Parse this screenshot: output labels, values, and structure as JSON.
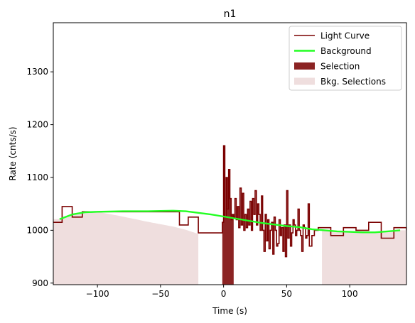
{
  "chart_data": {
    "type": "line",
    "title": "n1",
    "xlabel": "Time (s)",
    "ylabel": "Rate (cnts/s)",
    "xlim": [
      -135,
      145
    ],
    "ylim": [
      897,
      1393
    ],
    "xticks": [
      -100,
      -50,
      0,
      50,
      100
    ],
    "yticks": [
      900,
      1000,
      1100,
      1200,
      1300
    ],
    "grid": false,
    "legend_position": "top-right",
    "colors": {
      "light_curve": "#7a0000",
      "background": "#22ff22",
      "selection": "#8b2323",
      "bkg_selection": "#efdede"
    },
    "series": [
      {
        "name": "Light Curve",
        "style": "step",
        "x": [
          -135,
          -128,
          -120,
          -112,
          -104,
          -95,
          -85,
          -75,
          -65,
          -55,
          -45,
          -35,
          -28,
          -20,
          -12,
          -1,
          0,
          1,
          2,
          3,
          4,
          5,
          6,
          7,
          8,
          9,
          10,
          11,
          12,
          13,
          14,
          15,
          16,
          17,
          18,
          19,
          20,
          21,
          22,
          23,
          24,
          25,
          26,
          27,
          28,
          29,
          30,
          31,
          32,
          33,
          34,
          35,
          36,
          37,
          38,
          39,
          40,
          41,
          42,
          43,
          44,
          45,
          46,
          47,
          48,
          49,
          50,
          51,
          52,
          53,
          54,
          55,
          56,
          57,
          58,
          59,
          60,
          61,
          62,
          63,
          64,
          65,
          66,
          67,
          68,
          70,
          72,
          75,
          78,
          85,
          95,
          105,
          115,
          125,
          135,
          145
        ],
        "y": [
          1015,
          1045,
          1025,
          1035,
          1035,
          1035,
          1035,
          1035,
          1035,
          1035,
          1035,
          1010,
          1025,
          995,
          995,
          1015,
          1160,
          1025,
          1100,
          1040,
          1115,
          1060,
          1020,
          1030,
          1025,
          1060,
          1020,
          1045,
          1005,
          1080,
          1010,
          1070,
          1000,
          1030,
          1005,
          1040,
          1010,
          1055,
          1000,
          1060,
          1030,
          1075,
          1010,
          1050,
          1030,
          1000,
          1065,
          1000,
          960,
          1030,
          980,
          1020,
          965,
          1000,
          1015,
          955,
          1025,
          1000,
          970,
          975,
          1020,
          990,
          1005,
          960,
          1010,
          950,
          1075,
          985,
          1010,
          970,
          995,
          1020,
          1010,
          990,
          1000,
          1040,
          1000,
          990,
          960,
          1010,
          1005,
          985,
          990,
          1050,
          970,
          990,
          1000,
          1005,
          1005,
          990,
          1005,
          1000,
          1015,
          985,
          1005,
          1000
        ],
        "x_end": 145
      },
      {
        "name": "Background",
        "style": "smooth",
        "x": [
          -130,
          -120,
          -110,
          -100,
          -80,
          -60,
          -40,
          -30,
          -20,
          -10,
          0,
          10,
          20,
          30,
          40,
          50,
          60,
          70,
          80,
          90,
          100,
          110,
          120,
          130,
          140
        ],
        "y": [
          1021,
          1030,
          1034,
          1035,
          1036,
          1036,
          1037,
          1036,
          1033,
          1030,
          1026,
          1022,
          1018,
          1014,
          1011,
          1008,
          1006,
          1002,
          1000,
          998,
          997,
          996,
          996,
          998,
          1000
        ]
      }
    ],
    "selection": {
      "name": "Selection",
      "x_range": [
        -1,
        8
      ]
    },
    "bkg_selections": {
      "name": "Bkg. Selections",
      "ranges": [
        [
          -135,
          -20
        ],
        [
          78,
          145
        ]
      ]
    }
  }
}
